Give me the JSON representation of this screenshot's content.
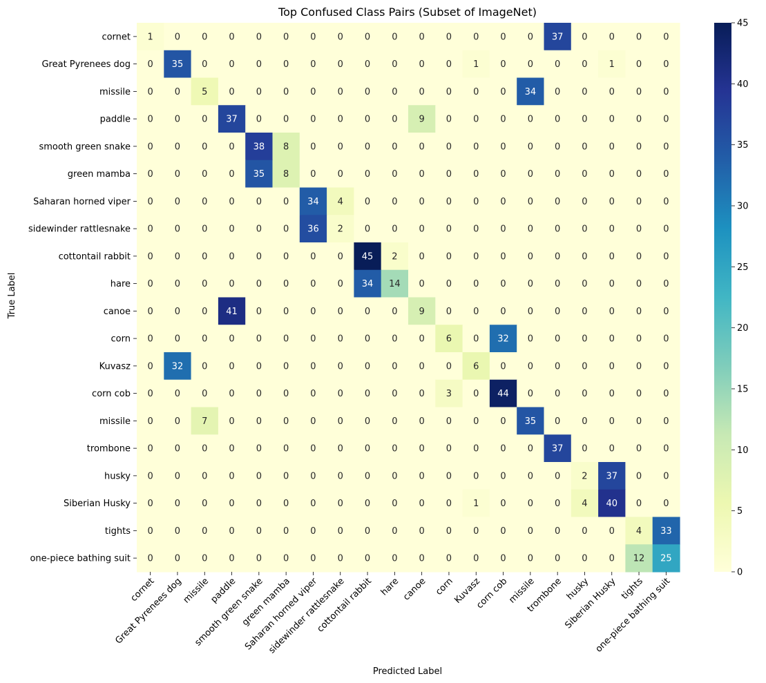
{
  "chart_data": {
    "type": "heatmap",
    "title": "Top Confused Class Pairs (Subset of ImageNet)",
    "xlabel": "Predicted Label",
    "ylabel": "True Label",
    "row_labels": [
      "cornet",
      "Great Pyrenees dog",
      "missile",
      "paddle",
      "smooth green snake",
      "green mamba",
      "Saharan horned viper",
      "sidewinder rattlesnake",
      "cottontail rabbit",
      "hare",
      "canoe",
      "corn",
      "Kuvasz",
      "corn cob",
      "missile",
      "trombone",
      "husky",
      "Siberian Husky",
      "tights",
      "one-piece bathing suit"
    ],
    "col_labels": [
      "cornet",
      "Great Pyrenees dog",
      "missile",
      "paddle",
      "smooth green snake",
      "green mamba",
      "Saharan horned viper",
      "sidewinder rattlesnake",
      "cottontail rabbit",
      "hare",
      "canoe",
      "corn",
      "Kuvasz",
      "corn cob",
      "missile",
      "trombone",
      "husky",
      "Siberian Husky",
      "tights",
      "one-piece bathing suit"
    ],
    "values": [
      [
        1,
        0,
        0,
        0,
        0,
        0,
        0,
        0,
        0,
        0,
        0,
        0,
        0,
        0,
        0,
        37,
        0,
        0,
        0,
        0
      ],
      [
        0,
        35,
        0,
        0,
        0,
        0,
        0,
        0,
        0,
        0,
        0,
        0,
        1,
        0,
        0,
        0,
        0,
        1,
        0,
        0
      ],
      [
        0,
        0,
        5,
        0,
        0,
        0,
        0,
        0,
        0,
        0,
        0,
        0,
        0,
        0,
        34,
        0,
        0,
        0,
        0,
        0
      ],
      [
        0,
        0,
        0,
        37,
        0,
        0,
        0,
        0,
        0,
        0,
        9,
        0,
        0,
        0,
        0,
        0,
        0,
        0,
        0,
        0
      ],
      [
        0,
        0,
        0,
        0,
        38,
        8,
        0,
        0,
        0,
        0,
        0,
        0,
        0,
        0,
        0,
        0,
        0,
        0,
        0,
        0
      ],
      [
        0,
        0,
        0,
        0,
        35,
        8,
        0,
        0,
        0,
        0,
        0,
        0,
        0,
        0,
        0,
        0,
        0,
        0,
        0,
        0
      ],
      [
        0,
        0,
        0,
        0,
        0,
        0,
        34,
        4,
        0,
        0,
        0,
        0,
        0,
        0,
        0,
        0,
        0,
        0,
        0,
        0
      ],
      [
        0,
        0,
        0,
        0,
        0,
        0,
        36,
        2,
        0,
        0,
        0,
        0,
        0,
        0,
        0,
        0,
        0,
        0,
        0,
        0
      ],
      [
        0,
        0,
        0,
        0,
        0,
        0,
        0,
        0,
        45,
        2,
        0,
        0,
        0,
        0,
        0,
        0,
        0,
        0,
        0,
        0
      ],
      [
        0,
        0,
        0,
        0,
        0,
        0,
        0,
        0,
        34,
        14,
        0,
        0,
        0,
        0,
        0,
        0,
        0,
        0,
        0,
        0
      ],
      [
        0,
        0,
        0,
        41,
        0,
        0,
        0,
        0,
        0,
        0,
        9,
        0,
        0,
        0,
        0,
        0,
        0,
        0,
        0,
        0
      ],
      [
        0,
        0,
        0,
        0,
        0,
        0,
        0,
        0,
        0,
        0,
        0,
        6,
        0,
        32,
        0,
        0,
        0,
        0,
        0,
        0
      ],
      [
        0,
        32,
        0,
        0,
        0,
        0,
        0,
        0,
        0,
        0,
        0,
        0,
        6,
        0,
        0,
        0,
        0,
        0,
        0,
        0
      ],
      [
        0,
        0,
        0,
        0,
        0,
        0,
        0,
        0,
        0,
        0,
        0,
        3,
        0,
        44,
        0,
        0,
        0,
        0,
        0,
        0
      ],
      [
        0,
        0,
        7,
        0,
        0,
        0,
        0,
        0,
        0,
        0,
        0,
        0,
        0,
        0,
        35,
        0,
        0,
        0,
        0,
        0
      ],
      [
        0,
        0,
        0,
        0,
        0,
        0,
        0,
        0,
        0,
        0,
        0,
        0,
        0,
        0,
        0,
        37,
        0,
        0,
        0,
        0
      ],
      [
        0,
        0,
        0,
        0,
        0,
        0,
        0,
        0,
        0,
        0,
        0,
        0,
        0,
        0,
        0,
        0,
        2,
        37,
        0,
        0
      ],
      [
        0,
        0,
        0,
        0,
        0,
        0,
        0,
        0,
        0,
        0,
        0,
        0,
        1,
        0,
        0,
        0,
        4,
        40,
        0,
        0
      ],
      [
        0,
        0,
        0,
        0,
        0,
        0,
        0,
        0,
        0,
        0,
        0,
        0,
        0,
        0,
        0,
        0,
        0,
        0,
        4,
        33
      ],
      [
        0,
        0,
        0,
        0,
        0,
        0,
        0,
        0,
        0,
        0,
        0,
        0,
        0,
        0,
        0,
        0,
        0,
        0,
        12,
        25
      ]
    ],
    "vmin": 0,
    "vmax": 45,
    "colormap": "YlGnBu",
    "colorbar_ticks": [
      0,
      5,
      10,
      15,
      20,
      25,
      30,
      35,
      40,
      45
    ],
    "grid": false
  }
}
